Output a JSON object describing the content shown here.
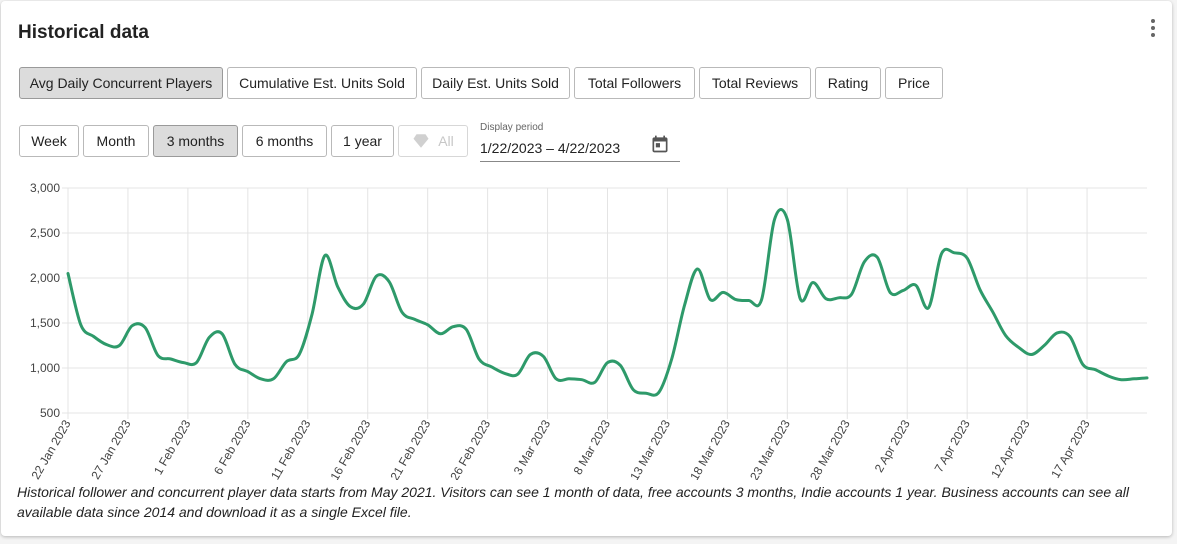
{
  "title": "Historical data",
  "metric_tabs": [
    {
      "label": "Avg Daily Concurrent Players",
      "active": true
    },
    {
      "label": "Cumulative Est. Units Sold",
      "active": false
    },
    {
      "label": "Daily Est. Units Sold",
      "active": false
    },
    {
      "label": "Total Followers",
      "active": false
    },
    {
      "label": "Total Reviews",
      "active": false
    },
    {
      "label": "Rating",
      "active": false
    },
    {
      "label": "Price",
      "active": false
    }
  ],
  "range_buttons": [
    {
      "label": "Week",
      "active": false
    },
    {
      "label": "Month",
      "active": false
    },
    {
      "label": "3 months",
      "active": true
    },
    {
      "label": "6 months",
      "active": false
    },
    {
      "label": "1 year",
      "active": false
    },
    {
      "label": "All",
      "active": false,
      "disabled": true,
      "icon": "diamond-icon"
    }
  ],
  "display_period": {
    "label": "Display period",
    "value": "1/22/2023 – 4/22/2023",
    "icon": "calendar-icon"
  },
  "note": "Historical follower and concurrent player data starts from May 2021. Visitors can see 1 month of data, free accounts 3 months, Indie accounts 1 year. Business accounts can see all available data since 2014 and download it as a single Excel file.",
  "colors": {
    "line": "#2e9a6a",
    "grid": "#e4e4e4",
    "active_button": "#dcdcdc"
  },
  "chart_data": {
    "type": "line",
    "ylim": [
      500,
      3000
    ],
    "yticks": [
      "3,000",
      "2,500",
      "2,000",
      "1,500",
      "1,000",
      "500"
    ],
    "ytick_values": [
      3000,
      2500,
      2000,
      1500,
      1000,
      500
    ],
    "xticks": [
      "22 Jan 2023",
      "27 Jan 2023",
      "1 Feb 2023",
      "6 Feb 2023",
      "11 Feb 2023",
      "16 Feb 2023",
      "21 Feb 2023",
      "26 Feb 2023",
      "3 Mar 2023",
      "8 Mar 2023",
      "13 Mar 2023",
      "18 Mar 2023",
      "23 Mar 2023",
      "28 Mar 2023",
      "2 Apr 2023",
      "7 Apr 2023",
      "12 Apr 2023",
      "17 Apr 2023"
    ],
    "x_start": "2023-01-22",
    "x_end": "2023-04-22",
    "series": [
      {
        "values": [
          2050,
          1480,
          1350,
          1260,
          1250,
          1470,
          1450,
          1140,
          1100,
          1060,
          1060,
          1340,
          1380,
          1040,
          960,
          880,
          880,
          1070,
          1150,
          1600,
          2250,
          1900,
          1680,
          1710,
          2020,
          1960,
          1620,
          1540,
          1480,
          1380,
          1460,
          1430,
          1100,
          1010,
          940,
          930,
          1150,
          1130,
          880,
          880,
          870,
          840,
          1060,
          1030,
          760,
          720,
          730,
          1100,
          1700,
          2100,
          1760,
          1840,
          1760,
          1750,
          1760,
          2650,
          2650,
          1770,
          1950,
          1770,
          1780,
          1820,
          2180,
          2230,
          1840,
          1860,
          1920,
          1670,
          2270,
          2280,
          2220,
          1870,
          1620,
          1360,
          1230,
          1150,
          1250,
          1390,
          1350,
          1040,
          980,
          910,
          870,
          880,
          890
        ],
        "x_end_day": 90
      }
    ],
    "grid": true
  }
}
